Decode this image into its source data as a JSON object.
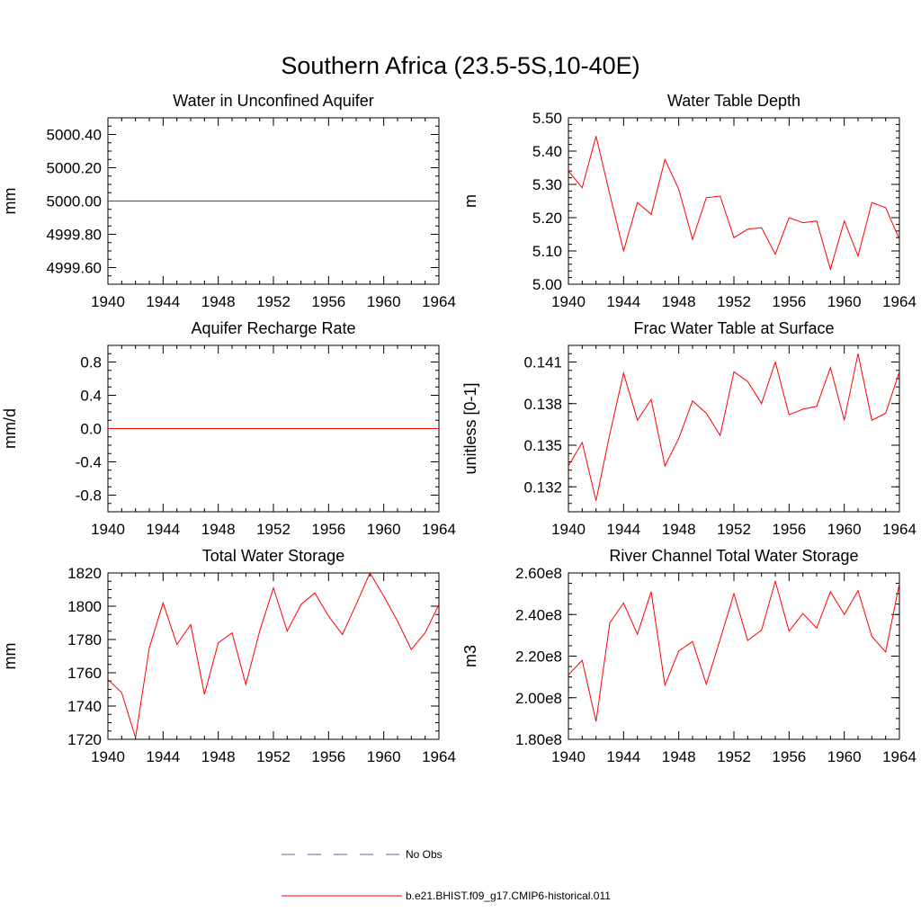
{
  "title": "Southern Africa (23.5-5S,10-40E)",
  "colors": {
    "model": "#ff0000",
    "obs": "#5b6ab8",
    "axis": "#000000"
  },
  "legend": [
    {
      "label": "No Obs",
      "style": "dashed",
      "color": "#5b6ab8"
    },
    {
      "label": "b.e21.BHIST.f09_g17.CMIP6-historical.011",
      "style": "solid",
      "color": "#ff0000"
    }
  ],
  "chart_data": [
    {
      "type": "line",
      "title": "Water in Unconfined Aquifer",
      "xlabel": "",
      "ylabel": "mm",
      "xlim": [
        1940,
        1964
      ],
      "ylim": [
        4999.5,
        5000.5
      ],
      "xticks": [
        "1940",
        "1944",
        "1948",
        "1952",
        "1956",
        "1960",
        "1964"
      ],
      "yticks": [
        {
          "v": 4999.6,
          "label": "4999.60"
        },
        {
          "v": 4999.8,
          "label": "4999.80"
        },
        {
          "v": 5000.0,
          "label": "5000.00"
        },
        {
          "v": 5000.2,
          "label": "5000.20"
        },
        {
          "v": 5000.4,
          "label": "5000.40"
        }
      ],
      "yminor": 0.05,
      "x": [
        1940,
        1964
      ],
      "series": [
        {
          "values": [
            5000.0,
            5000.0
          ]
        }
      ]
    },
    {
      "type": "line",
      "title": "Water Table Depth",
      "xlabel": "",
      "ylabel": "m",
      "xlim": [
        1940,
        1964
      ],
      "ylim": [
        5.0,
        5.5
      ],
      "xticks": [
        "1940",
        "1944",
        "1948",
        "1952",
        "1956",
        "1960",
        "1964"
      ],
      "yticks": [
        {
          "v": 5.0,
          "label": "5.00"
        },
        {
          "v": 5.1,
          "label": "5.10"
        },
        {
          "v": 5.2,
          "label": "5.20"
        },
        {
          "v": 5.3,
          "label": "5.30"
        },
        {
          "v": 5.4,
          "label": "5.40"
        },
        {
          "v": 5.5,
          "label": "5.50"
        }
      ],
      "yminor": 0.02,
      "x": [
        1940,
        1941,
        1942,
        1943,
        1944,
        1945,
        1946,
        1947,
        1948,
        1949,
        1950,
        1951,
        1952,
        1953,
        1954,
        1955,
        1956,
        1957,
        1958,
        1959,
        1960,
        1961,
        1962,
        1963,
        1964
      ],
      "series": [
        {
          "values": [
            5.34,
            5.29,
            5.445,
            5.27,
            5.1,
            5.245,
            5.21,
            5.375,
            5.285,
            5.135,
            5.26,
            5.265,
            5.14,
            5.165,
            5.17,
            5.09,
            5.2,
            5.185,
            5.19,
            5.045,
            5.19,
            5.085,
            5.245,
            5.23,
            5.135
          ]
        }
      ]
    },
    {
      "type": "line",
      "title": "Aquifer Recharge Rate",
      "xlabel": "",
      "ylabel": "mm/d",
      "xlim": [
        1940,
        1964
      ],
      "ylim": [
        -1.0,
        1.0
      ],
      "xticks": [
        "1940",
        "1944",
        "1948",
        "1952",
        "1956",
        "1960",
        "1964"
      ],
      "yticks": [
        {
          "v": -0.8,
          "label": "-0.8"
        },
        {
          "v": -0.4,
          "label": "-0.4"
        },
        {
          "v": 0.0,
          "label": "0.0"
        },
        {
          "v": 0.4,
          "label": "0.4"
        },
        {
          "v": 0.8,
          "label": "0.8"
        }
      ],
      "yminor": 0.1,
      "x": [
        1940,
        1964
      ],
      "series": [
        {
          "values": [
            0.0,
            0.0
          ]
        }
      ]
    },
    {
      "type": "line",
      "title": "Frac Water Table at Surface",
      "xlabel": "",
      "ylabel": "unitless [0-1]",
      "xlim": [
        1940,
        1964
      ],
      "ylim": [
        0.1302,
        0.1422
      ],
      "xticks": [
        "1940",
        "1944",
        "1948",
        "1952",
        "1956",
        "1960",
        "1964"
      ],
      "yticks": [
        {
          "v": 0.132,
          "label": "0.132"
        },
        {
          "v": 0.135,
          "label": "0.135"
        },
        {
          "v": 0.138,
          "label": "0.138"
        },
        {
          "v": 0.141,
          "label": "0.141"
        }
      ],
      "yminor": 0.0006,
      "x": [
        1940,
        1941,
        1942,
        1943,
        1944,
        1945,
        1946,
        1947,
        1948,
        1949,
        1950,
        1951,
        1952,
        1953,
        1954,
        1955,
        1956,
        1957,
        1958,
        1959,
        1960,
        1961,
        1962,
        1963,
        1964
      ],
      "series": [
        {
          "values": [
            0.1335,
            0.1352,
            0.131,
            0.1358,
            0.1402,
            0.1368,
            0.1383,
            0.1335,
            0.1355,
            0.1382,
            0.1373,
            0.1357,
            0.1403,
            0.1396,
            0.138,
            0.141,
            0.1372,
            0.1376,
            0.1378,
            0.1406,
            0.1368,
            0.1416,
            0.1368,
            0.1373,
            0.1403
          ]
        }
      ]
    },
    {
      "type": "line",
      "title": "Total Water Storage",
      "xlabel": "",
      "ylabel": "mm",
      "xlim": [
        1940,
        1964
      ],
      "ylim": [
        1720,
        1820
      ],
      "xticks": [
        "1940",
        "1944",
        "1948",
        "1952",
        "1956",
        "1960",
        "1964"
      ],
      "yticks": [
        {
          "v": 1720,
          "label": "1720"
        },
        {
          "v": 1740,
          "label": "1740"
        },
        {
          "v": 1760,
          "label": "1760"
        },
        {
          "v": 1780,
          "label": "1780"
        },
        {
          "v": 1800,
          "label": "1800"
        },
        {
          "v": 1820,
          "label": "1820"
        }
      ],
      "yminor": 5,
      "x": [
        1940,
        1941,
        1942,
        1943,
        1944,
        1945,
        1946,
        1947,
        1948,
        1949,
        1950,
        1951,
        1952,
        1953,
        1954,
        1955,
        1956,
        1957,
        1958,
        1959,
        1960,
        1961,
        1962,
        1963,
        1964
      ],
      "series": [
        {
          "values": [
            1756,
            1748,
            1721,
            1775,
            1802,
            1777,
            1789,
            1747,
            1778,
            1784,
            1753,
            1785,
            1811,
            1785,
            1801,
            1808,
            1794,
            1783,
            1801,
            1820,
            1806,
            1791,
            1774,
            1784,
            1801
          ]
        }
      ]
    },
    {
      "type": "line",
      "title": "River Channel Total Water Storage",
      "xlabel": "",
      "ylabel": "m3",
      "xlim": [
        1940,
        1964
      ],
      "ylim": [
        180000000,
        260000000
      ],
      "xticks": [
        "1940",
        "1944",
        "1948",
        "1952",
        "1956",
        "1960",
        "1964"
      ],
      "yticks": [
        {
          "v": 180000000,
          "label": "1.80e8"
        },
        {
          "v": 200000000,
          "label": "2.00e8"
        },
        {
          "v": 220000000,
          "label": "2.20e8"
        },
        {
          "v": 240000000,
          "label": "2.40e8"
        },
        {
          "v": 260000000,
          "label": "2.60e8"
        }
      ],
      "yminor": 5000000,
      "x": [
        1940,
        1941,
        1942,
        1943,
        1944,
        1945,
        1946,
        1947,
        1948,
        1949,
        1950,
        1951,
        1952,
        1953,
        1954,
        1955,
        1956,
        1957,
        1958,
        1959,
        1960,
        1961,
        1962,
        1963,
        1964
      ],
      "series": [
        {
          "values": [
            211000000,
            218000000,
            188500000,
            236000000,
            245500000,
            230500000,
            251000000,
            206000000,
            222500000,
            227000000,
            206500000,
            228000000,
            250000000,
            227500000,
            232500000,
            256000000,
            232000000,
            240500000,
            233500000,
            251000000,
            240000000,
            251500000,
            229500000,
            222000000,
            255000000
          ]
        }
      ]
    }
  ]
}
